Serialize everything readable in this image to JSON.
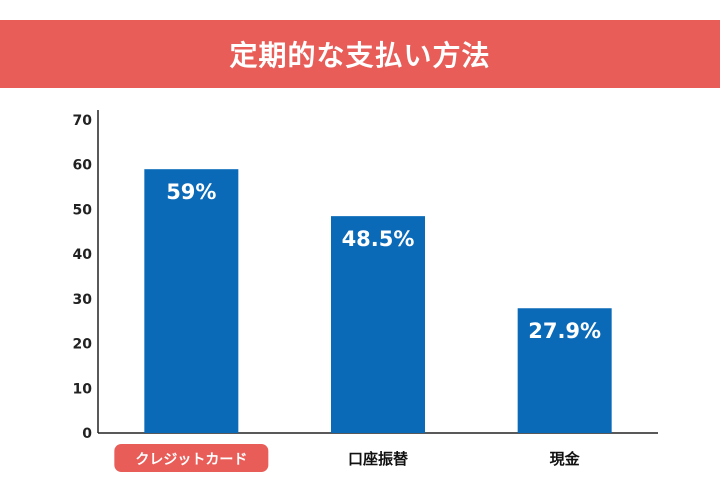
{
  "colors": {
    "title_bg": "#e85d58",
    "bar": "#0a6ab8",
    "highlight_bg": "#e85d58",
    "axis": "#222222"
  },
  "chart_data": {
    "type": "bar",
    "title": "定期的な支払い方法",
    "xlabel": "",
    "ylabel": "",
    "ylim": [
      0,
      70
    ],
    "yticks": [
      0,
      10,
      20,
      30,
      40,
      50,
      60,
      70
    ],
    "grid": false,
    "categories": [
      "クレジットカード",
      "口座振替",
      "現金"
    ],
    "values": [
      59,
      48.5,
      27.9
    ],
    "data_labels": [
      "59%",
      "48.5%",
      "27.9%"
    ],
    "highlighted_category": "クレジットカード"
  }
}
